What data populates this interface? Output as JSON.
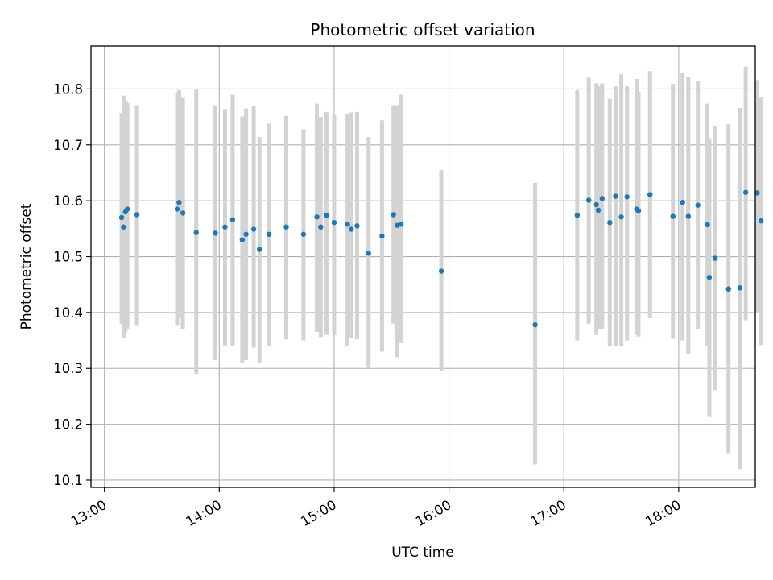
{
  "chart_data": {
    "type": "scatter",
    "title": "Photometric offset variation",
    "xlabel": "UTC time",
    "ylabel": "Photometric offset",
    "x_ticks": [
      "13:00",
      "14:00",
      "15:00",
      "16:00",
      "17:00",
      "18:00"
    ],
    "y_ticks": [
      "10.1",
      "10.2",
      "10.3",
      "10.4",
      "10.5",
      "10.6",
      "10.7",
      "10.8"
    ],
    "xlim": [
      "12:53",
      "18:40"
    ],
    "ylim": [
      10.087,
      10.877
    ],
    "grid": true,
    "point_color": "#1f77b4",
    "errorbar_color": "#d3d3d3",
    "series": [
      {
        "x": [
          "13:09",
          "13:10",
          "13:11",
          "13:12",
          "13:17",
          "13:38",
          "13:39",
          "13:41",
          "13:48",
          "13:58",
          "14:03",
          "14:07",
          "14:12",
          "14:14",
          "14:18",
          "14:21",
          "14:26",
          "14:35",
          "14:44",
          "14:51",
          "14:53",
          "14:56",
          "15:00",
          "15:07",
          "15:09",
          "15:12",
          "15:18",
          "15:25",
          "15:31",
          "15:33",
          "15:35",
          "15:56",
          "16:45",
          "17:07",
          "17:13",
          "17:17",
          "17:18",
          "17:20",
          "17:24",
          "17:27",
          "17:30",
          "17:33",
          "17:38",
          "17:39",
          "17:45",
          "17:57",
          "18:02",
          "18:05",
          "18:10",
          "18:15",
          "18:16",
          "18:19",
          "18:26",
          "18:32",
          "18:35",
          "18:41",
          "18:43"
        ],
        "y": [
          10.57,
          10.553,
          10.58,
          10.585,
          10.575,
          10.585,
          10.597,
          10.578,
          10.543,
          10.542,
          10.553,
          10.566,
          10.53,
          10.54,
          10.549,
          10.513,
          10.54,
          10.553,
          10.54,
          10.571,
          10.553,
          10.574,
          10.561,
          10.558,
          10.549,
          10.555,
          10.506,
          10.537,
          10.575,
          10.556,
          10.558,
          10.474,
          10.378,
          10.574,
          10.601,
          10.593,
          10.583,
          10.604,
          10.561,
          10.608,
          10.571,
          10.607,
          10.585,
          10.582,
          10.611,
          10.572,
          10.597,
          10.572,
          10.592,
          10.557,
          10.463,
          10.497,
          10.442,
          10.444,
          10.615,
          10.614,
          10.564
        ],
        "yerr_low": [
          10.38,
          10.355,
          10.365,
          10.37,
          10.376,
          10.376,
          10.39,
          10.37,
          10.29,
          10.315,
          10.34,
          10.34,
          10.31,
          10.315,
          10.337,
          10.31,
          10.34,
          10.352,
          10.35,
          10.365,
          10.356,
          10.36,
          10.36,
          10.34,
          10.355,
          10.352,
          10.3,
          10.33,
          10.38,
          10.32,
          10.345,
          10.296,
          10.128,
          10.35,
          10.38,
          10.36,
          10.37,
          10.37,
          10.34,
          10.34,
          10.34,
          10.35,
          10.36,
          10.357,
          10.39,
          10.353,
          10.35,
          10.325,
          10.37,
          10.34,
          10.213,
          10.261,
          10.148,
          10.12,
          10.386,
          10.4,
          10.342
        ],
        "yerr_high": [
          10.757,
          10.788,
          10.78,
          10.775,
          10.771,
          10.793,
          10.798,
          10.784,
          10.799,
          10.771,
          10.764,
          10.79,
          10.751,
          10.765,
          10.77,
          10.714,
          10.738,
          10.752,
          10.728,
          10.774,
          10.75,
          10.759,
          10.754,
          10.755,
          10.758,
          10.759,
          10.714,
          10.744,
          10.771,
          10.771,
          10.79,
          10.655,
          10.632,
          10.798,
          10.82,
          10.81,
          10.805,
          10.81,
          10.782,
          10.805,
          10.826,
          10.805,
          10.818,
          10.795,
          10.832,
          10.809,
          10.828,
          10.822,
          10.815,
          10.774,
          10.712,
          10.733,
          10.737,
          10.766,
          10.84,
          10.816,
          10.785
        ]
      }
    ]
  }
}
